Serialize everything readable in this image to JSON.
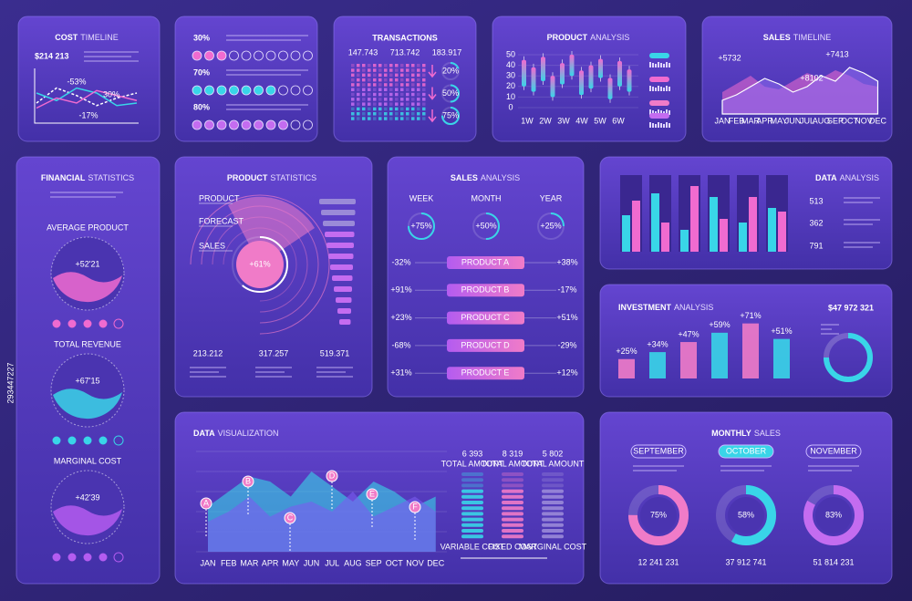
{
  "side_id": "293447227",
  "cost_timeline": {
    "title": {
      "bold": "COST",
      "rest": "TIMELINE"
    },
    "amount": "$214 213",
    "labels": [
      "-53%",
      "30%",
      "-17%"
    ],
    "series": [
      {
        "color": "#ffffff",
        "values": [
          40,
          70,
          55,
          35,
          50,
          60
        ]
      },
      {
        "color": "#39d5e8",
        "values": [
          60,
          45,
          70,
          60,
          35,
          40
        ]
      },
      {
        "color": "#f06bd0",
        "values": [
          30,
          50,
          40,
          65,
          55,
          45
        ]
      }
    ]
  },
  "percent_panel": {
    "rows": [
      {
        "value": 30,
        "label": "30%"
      },
      {
        "value": 70,
        "label": "70%"
      },
      {
        "value": 80,
        "label": "80%"
      }
    ]
  },
  "transactions": {
    "title": "TRANSACTIONS",
    "totals": [
      "147.743",
      "713.742",
      "183.917"
    ],
    "rings": [
      {
        "value": 20,
        "label": "20%"
      },
      {
        "value": 50,
        "label": "50%"
      },
      {
        "value": 75,
        "label": "75%"
      }
    ]
  },
  "product_analysis": {
    "title": {
      "bold": "PRODUCT",
      "rest": "ANALYSIS"
    },
    "ylim": [
      0,
      50
    ],
    "yticks": [
      0,
      10,
      20,
      30,
      40,
      50
    ],
    "weeks": [
      "1W",
      "2W",
      "3W",
      "4W",
      "5W",
      "6W"
    ],
    "candles": [
      [
        20,
        45
      ],
      [
        15,
        38
      ],
      [
        25,
        48
      ],
      [
        10,
        30
      ],
      [
        22,
        42
      ],
      [
        30,
        50
      ],
      [
        12,
        35
      ],
      [
        18,
        40
      ],
      [
        28,
        46
      ],
      [
        8,
        28
      ],
      [
        20,
        44
      ],
      [
        15,
        36
      ]
    ]
  },
  "sales_timeline": {
    "title": {
      "bold": "SALES",
      "rest": "TIMELINE"
    },
    "annotations": [
      "+5732",
      "+7413",
      "+8102"
    ],
    "months": [
      "JAN",
      "FEB",
      "MAR",
      "APR",
      "MAY",
      "JUN",
      "JUL",
      "AUG",
      "SEP",
      "OCT",
      "NOV",
      "DEC"
    ],
    "series": [
      {
        "color": "#f06bd0",
        "values": [
          40,
          55,
          70,
          50,
          45,
          60,
          75,
          65,
          80,
          70,
          55,
          50
        ]
      },
      {
        "color": "#8f6cf0",
        "values": [
          25,
          35,
          50,
          65,
          55,
          40,
          50,
          70,
          60,
          85,
          75,
          60
        ]
      }
    ]
  },
  "financial": {
    "title": {
      "bold": "FINANCIAL",
      "rest": "STATISTICS"
    },
    "gauges": [
      {
        "title": "AVERAGE PRODUCT",
        "value": "+52'21"
      },
      {
        "title": "TOTAL REVENUE",
        "value": "+67'15"
      },
      {
        "title": "MARGINAL COST",
        "value": "+42'39"
      }
    ]
  },
  "product_statistics": {
    "title": {
      "bold": "PRODUCT",
      "rest": "STATISTICS"
    },
    "legend": [
      "PRODUCT",
      "FORECAST",
      "SALES"
    ],
    "center": {
      "value": 61,
      "label": "+61%"
    },
    "totals": [
      "213.212",
      "317.257",
      "519.371"
    ]
  },
  "sales_analysis": {
    "title": {
      "bold": "SALES",
      "rest": "ANALYSIS"
    },
    "periods": [
      {
        "name": "WEEK",
        "value": 75,
        "label": "+75%"
      },
      {
        "name": "MONTH",
        "value": 50,
        "label": "+50%"
      },
      {
        "name": "YEAR",
        "value": 25,
        "label": "+25%"
      }
    ],
    "products": [
      {
        "left": "-32%",
        "name": "PRODUCT A",
        "right": "+38%"
      },
      {
        "left": "+91%",
        "name": "PRODUCT B",
        "right": "-17%"
      },
      {
        "left": "+23%",
        "name": "PRODUCT C",
        "right": "+51%"
      },
      {
        "left": "-68%",
        "name": "PRODUCT D",
        "right": "-29%"
      },
      {
        "left": "+31%",
        "name": "PRODUCT E",
        "right": "+12%"
      }
    ]
  },
  "data_analysis": {
    "title": {
      "bold": "DATA",
      "rest": "ANALYSIS"
    },
    "numbers": [
      "513",
      "362",
      "791"
    ],
    "series": [
      {
        "color": "#39d5e8",
        "values": [
          50,
          80,
          30,
          75,
          40,
          60
        ]
      },
      {
        "color": "#f06bd0",
        "values": [
          70,
          40,
          90,
          45,
          75,
          55
        ]
      }
    ]
  },
  "investment": {
    "title": {
      "bold": "INVESTMENT",
      "rest": "ANALYSIS"
    },
    "amount": "$47 972 321",
    "values": [
      25,
      34,
      47,
      59,
      71,
      51
    ],
    "value_labels": [
      "+25%",
      "+34%",
      "+47%",
      "+59%",
      "+71%",
      "+51%"
    ]
  },
  "data_visualization": {
    "title": {
      "bold": "DATA",
      "rest": "VISUALIZATION"
    },
    "months": [
      "JAN",
      "FEB",
      "MAR",
      "APR",
      "MAY",
      "JUN",
      "JUL",
      "AUG",
      "SEP",
      "OCT",
      "NOV",
      "DEC"
    ],
    "pins": [
      "A",
      "B",
      "C",
      "D",
      "E",
      "F"
    ],
    "series": [
      {
        "color": "#39d5e8",
        "values": [
          45,
          60,
          75,
          70,
          55,
          80,
          65,
          50,
          70,
          60,
          45,
          55
        ]
      },
      {
        "color": "#7b5cf0",
        "values": [
          30,
          40,
          55,
          35,
          45,
          50,
          40,
          60,
          35,
          45,
          55,
          40
        ]
      }
    ],
    "costs": [
      {
        "amount": "6 393",
        "caption": "TOTAL AMOUNT",
        "name": "VARIABLE COST"
      },
      {
        "amount": "8 319",
        "caption": "TOTAL AMOUNT",
        "name": "FIXED COST"
      },
      {
        "amount": "5 802",
        "caption": "TOTAL AMOUNT",
        "name": "MARGINAL COST"
      }
    ]
  },
  "monthly_sales": {
    "title": {
      "bold": "MONTHLY",
      "rest": "SALES"
    },
    "months": [
      {
        "name": "SEPTEMBER",
        "value": 75,
        "label": "75%",
        "total": "12 241 231"
      },
      {
        "name": "OCTOBER",
        "value": 58,
        "label": "58%",
        "total": "37 912 741"
      },
      {
        "name": "NOVEMBER",
        "value": 83,
        "label": "83%",
        "total": "51 814 231"
      }
    ]
  }
}
